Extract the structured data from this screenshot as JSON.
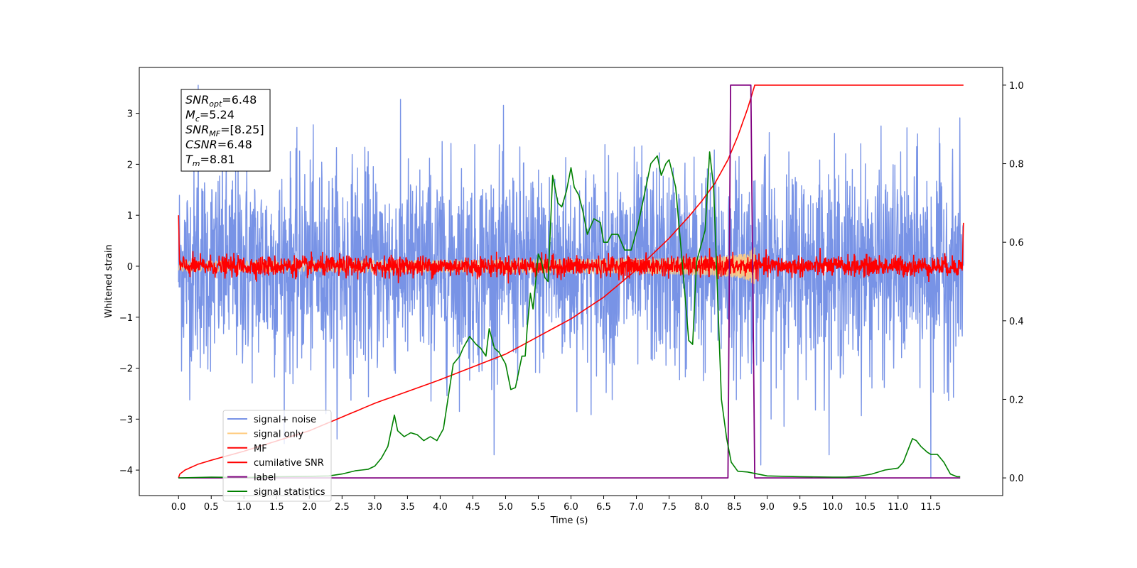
{
  "chart_data": {
    "type": "line",
    "xlabel": "Time (s)",
    "ylabel": "Whitened strain",
    "xlim": [
      -0.6,
      12.6
    ],
    "ylim_left": [
      -4.5,
      3.9
    ],
    "ylim_right": [
      -0.045,
      1.045
    ],
    "x_ticks": [
      0.0,
      0.5,
      1.0,
      1.5,
      2.0,
      2.5,
      3.0,
      3.5,
      4.0,
      4.5,
      5.0,
      5.5,
      6.0,
      6.5,
      7.0,
      7.5,
      8.0,
      8.5,
      9.0,
      9.5,
      10.0,
      10.5,
      11.0,
      11.5
    ],
    "x_tick_labels": [
      "0.0",
      "0.5",
      "1.0",
      "1.5",
      "2.0",
      "2.5",
      "3.0",
      "3.5",
      "4.0",
      "4.5",
      "5.0",
      "5.5",
      "6.0",
      "6.5",
      "7.0",
      "7.5",
      "8.0",
      "8.5",
      "9.0",
      "9.5",
      "10.0",
      "10.5",
      "11.0",
      "11.5"
    ],
    "y_ticks_left": [
      -4,
      -3,
      -2,
      -1,
      0,
      1,
      2,
      3
    ],
    "y_tick_labels_left": [
      "−4",
      "−3",
      "−2",
      "−1",
      "0",
      "1",
      "2",
      "3"
    ],
    "y_ticks_right": [
      0.0,
      0.2,
      0.4,
      0.6,
      0.8,
      1.0
    ],
    "y_tick_labels_right": [
      "0.0",
      "0.2",
      "0.4",
      "0.6",
      "0.8",
      "1.0"
    ],
    "duration": 12.0,
    "merger_time": 8.81,
    "annotation": [
      {
        "base": "SNR",
        "sub": "opt",
        "value": "=6.48"
      },
      {
        "base": "M",
        "sub": "c",
        "value": "=5.24"
      },
      {
        "base": "SNR",
        "sub": "MF",
        "value": "=[8.25]"
      },
      {
        "base": "CSNR",
        "sub": "",
        "value": "=6.48"
      },
      {
        "base": "T",
        "sub": "m",
        "value": "=8.81"
      }
    ],
    "series": [
      {
        "name": "signal+ noise",
        "color": "#7893e6",
        "axis": "left",
        "style": "noise",
        "amplitude_std": 1.0,
        "peaks": [
          {
            "x": 0.3,
            "y": 3.55
          },
          {
            "x": 8.9,
            "y": -3.9
          },
          {
            "x": 11.5,
            "y": -4.15
          }
        ]
      },
      {
        "name": "signal only",
        "color": "#ffcc80",
        "axis": "left",
        "style": "chirp",
        "max_amplitude": 0.45
      },
      {
        "name": "MF",
        "color": "#ff0000",
        "axis": "left",
        "style": "noise",
        "amplitude_std": 0.1
      },
      {
        "name": "cumilative SNR",
        "color": "#ff0000",
        "axis": "right",
        "x": [
          0.0,
          0.02,
          0.1,
          0.3,
          0.5,
          1.0,
          2.0,
          3.0,
          4.0,
          5.0,
          6.0,
          6.5,
          7.0,
          7.5,
          7.8,
          8.0,
          8.2,
          8.4,
          8.55,
          8.7,
          8.81,
          12.0
        ],
        "values": [
          0.0,
          0.01,
          0.02,
          0.035,
          0.045,
          0.068,
          0.12,
          0.19,
          0.25,
          0.315,
          0.405,
          0.46,
          0.53,
          0.61,
          0.665,
          0.705,
          0.75,
          0.81,
          0.87,
          0.94,
          1.0,
          1.0
        ]
      },
      {
        "name": "label",
        "color": "#800080",
        "axis": "right",
        "x": [
          0.0,
          8.4,
          8.44,
          8.75,
          8.81,
          11.95
        ],
        "values": [
          0.0,
          0.0,
          1.0,
          1.0,
          0.0,
          0.0
        ]
      },
      {
        "name": "signal statistics",
        "color": "#008000",
        "axis": "right",
        "x": [
          0.0,
          0.5,
          1.0,
          1.5,
          2.0,
          2.3,
          2.5,
          2.7,
          2.9,
          3.0,
          3.1,
          3.2,
          3.3,
          3.35,
          3.45,
          3.55,
          3.65,
          3.75,
          3.85,
          3.95,
          4.05,
          4.1,
          4.2,
          4.25,
          4.3,
          4.35,
          4.45,
          4.55,
          4.62,
          4.7,
          4.75,
          4.83,
          4.9,
          5.0,
          5.08,
          5.15,
          5.2,
          5.25,
          5.3,
          5.33,
          5.38,
          5.42,
          5.5,
          5.55,
          5.6,
          5.65,
          5.72,
          5.8,
          5.86,
          5.93,
          6.0,
          6.05,
          6.12,
          6.18,
          6.25,
          6.35,
          6.45,
          6.5,
          6.56,
          6.62,
          6.72,
          6.82,
          6.92,
          7.02,
          7.12,
          7.22,
          7.32,
          7.38,
          7.45,
          7.5,
          7.6,
          7.7,
          7.8,
          7.86,
          7.92,
          8.05,
          8.12,
          8.18,
          8.3,
          8.38,
          8.45,
          8.55,
          8.7,
          9.0,
          9.5,
          10.0,
          10.2,
          10.4,
          10.6,
          10.8,
          11.0,
          11.08,
          11.15,
          11.22,
          11.28,
          11.35,
          11.45,
          11.5,
          11.6,
          11.7,
          11.8,
          11.9,
          11.95
        ],
        "values": [
          0.0,
          0.002,
          0.001,
          0.003,
          0.004,
          0.005,
          0.01,
          0.018,
          0.022,
          0.03,
          0.05,
          0.08,
          0.16,
          0.12,
          0.105,
          0.115,
          0.11,
          0.095,
          0.105,
          0.095,
          0.125,
          0.18,
          0.29,
          0.3,
          0.31,
          0.33,
          0.36,
          0.34,
          0.33,
          0.31,
          0.38,
          0.33,
          0.32,
          0.29,
          0.225,
          0.23,
          0.27,
          0.31,
          0.31,
          0.38,
          0.47,
          0.43,
          0.57,
          0.55,
          0.51,
          0.5,
          0.77,
          0.7,
          0.69,
          0.73,
          0.79,
          0.74,
          0.72,
          0.68,
          0.62,
          0.66,
          0.65,
          0.6,
          0.6,
          0.62,
          0.62,
          0.58,
          0.58,
          0.64,
          0.72,
          0.8,
          0.82,
          0.77,
          0.8,
          0.81,
          0.74,
          0.55,
          0.35,
          0.34,
          0.55,
          0.63,
          0.83,
          0.74,
          0.2,
          0.1,
          0.04,
          0.017,
          0.015,
          0.005,
          0.003,
          0.002,
          0.002,
          0.004,
          0.01,
          0.02,
          0.025,
          0.04,
          0.07,
          0.1,
          0.095,
          0.08,
          0.065,
          0.06,
          0.06,
          0.04,
          0.01,
          0.003,
          0.003
        ]
      }
    ],
    "legend": {
      "location": "lower-left",
      "entries": [
        "signal+ noise",
        "signal only",
        "MF",
        "cumilative SNR",
        "label",
        "signal statistics"
      ]
    }
  }
}
